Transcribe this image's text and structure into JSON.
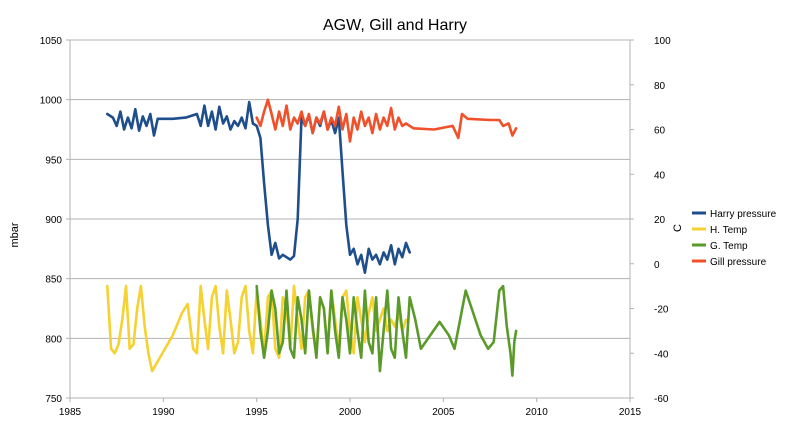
{
  "chart_data": {
    "type": "line",
    "title": "AGW, Gill and Harry",
    "ylabel": "mbar",
    "y2label": "C",
    "xlim": [
      1985,
      2015
    ],
    "ylim": [
      750,
      1050
    ],
    "y2lim": [
      -60,
      100
    ],
    "xticks": [
      1985,
      1990,
      1995,
      2000,
      2005,
      2010,
      2015
    ],
    "yticks": [
      750,
      800,
      850,
      900,
      950,
      1000,
      1050
    ],
    "y2ticks": [
      -60,
      -40,
      -20,
      0,
      20,
      40,
      60,
      80,
      100
    ],
    "grid": "horizontal",
    "legend_position": "right",
    "series": [
      {
        "name": "Harry pressure",
        "axis": "left",
        "color": "#1f4e8c",
        "points": [
          [
            1987.0,
            988
          ],
          [
            1987.3,
            985
          ],
          [
            1987.5,
            978
          ],
          [
            1987.7,
            990
          ],
          [
            1987.9,
            975
          ],
          [
            1988.1,
            985
          ],
          [
            1988.3,
            976
          ],
          [
            1988.5,
            992
          ],
          [
            1988.7,
            974
          ],
          [
            1988.9,
            986
          ],
          [
            1989.1,
            978
          ],
          [
            1989.3,
            988
          ],
          [
            1989.5,
            970
          ],
          [
            1989.7,
            984
          ],
          [
            1990.5,
            984
          ],
          [
            1991.2,
            985
          ],
          [
            1991.8,
            988
          ],
          [
            1992.0,
            978
          ],
          [
            1992.2,
            995
          ],
          [
            1992.4,
            978
          ],
          [
            1992.6,
            990
          ],
          [
            1992.8,
            975
          ],
          [
            1993.0,
            994
          ],
          [
            1993.2,
            980
          ],
          [
            1993.4,
            986
          ],
          [
            1993.6,
            975
          ],
          [
            1993.8,
            982
          ],
          [
            1994.0,
            978
          ],
          [
            1994.2,
            985
          ],
          [
            1994.4,
            976
          ],
          [
            1994.6,
            998
          ],
          [
            1994.8,
            980
          ],
          [
            1995.0,
            978
          ],
          [
            1995.2,
            968
          ],
          [
            1995.4,
            930
          ],
          [
            1995.6,
            895
          ],
          [
            1995.8,
            870
          ],
          [
            1996.0,
            880
          ],
          [
            1996.2,
            867
          ],
          [
            1996.4,
            870
          ],
          [
            1996.6,
            868
          ],
          [
            1996.8,
            866
          ],
          [
            1997.0,
            869
          ],
          [
            1997.2,
            900
          ],
          [
            1997.4,
            985
          ],
          [
            1997.6,
            978
          ],
          [
            1997.8,
            987
          ],
          [
            1998.0,
            972
          ],
          [
            1998.2,
            985
          ],
          [
            1998.4,
            978
          ],
          [
            1998.6,
            990
          ],
          [
            1998.8,
            975
          ],
          [
            1999.0,
            983
          ],
          [
            1999.2,
            972
          ],
          [
            1999.4,
            985
          ],
          [
            1999.6,
            940
          ],
          [
            1999.8,
            895
          ],
          [
            2000.0,
            870
          ],
          [
            2000.2,
            875
          ],
          [
            2000.4,
            862
          ],
          [
            2000.6,
            870
          ],
          [
            2000.8,
            855
          ],
          [
            2001.0,
            875
          ],
          [
            2001.2,
            866
          ],
          [
            2001.4,
            870
          ],
          [
            2001.6,
            862
          ],
          [
            2001.8,
            872
          ],
          [
            2002.0,
            866
          ],
          [
            2002.2,
            878
          ],
          [
            2002.4,
            862
          ],
          [
            2002.6,
            875
          ],
          [
            2002.8,
            868
          ],
          [
            2003.0,
            880
          ],
          [
            2003.2,
            872
          ]
        ]
      },
      {
        "name": "H. Temp",
        "axis": "right",
        "color": "#f5d131",
        "points": [
          [
            1987.0,
            -10
          ],
          [
            1987.2,
            -38
          ],
          [
            1987.4,
            -40
          ],
          [
            1987.6,
            -36
          ],
          [
            1987.8,
            -25
          ],
          [
            1988.0,
            -10
          ],
          [
            1988.2,
            -38
          ],
          [
            1988.4,
            -36
          ],
          [
            1988.6,
            -20
          ],
          [
            1988.8,
            -10
          ],
          [
            1989.0,
            -28
          ],
          [
            1989.2,
            -40
          ],
          [
            1989.4,
            -48
          ],
          [
            1990.5,
            -32
          ],
          [
            1991.0,
            -22
          ],
          [
            1991.3,
            -18
          ],
          [
            1991.6,
            -38
          ],
          [
            1991.8,
            -40
          ],
          [
            1992.0,
            -10
          ],
          [
            1992.2,
            -25
          ],
          [
            1992.4,
            -38
          ],
          [
            1992.6,
            -15
          ],
          [
            1992.8,
            -10
          ],
          [
            1993.0,
            -28
          ],
          [
            1993.2,
            -40
          ],
          [
            1993.4,
            -12
          ],
          [
            1993.6,
            -25
          ],
          [
            1993.8,
            -40
          ],
          [
            1994.0,
            -35
          ],
          [
            1994.2,
            -15
          ],
          [
            1994.4,
            -10
          ],
          [
            1994.6,
            -30
          ],
          [
            1994.8,
            -40
          ],
          [
            1995.0,
            -12
          ],
          [
            1995.2,
            -25
          ],
          [
            1995.4,
            -40
          ],
          [
            1995.6,
            -15
          ],
          [
            1995.8,
            -12
          ],
          [
            1996.0,
            -38
          ],
          [
            1996.2,
            -42
          ],
          [
            1996.4,
            -15
          ],
          [
            1996.6,
            -20
          ],
          [
            1996.8,
            -38
          ],
          [
            1997.0,
            -10
          ],
          [
            1997.2,
            -25
          ],
          [
            1997.4,
            -38
          ],
          [
            1997.6,
            -15
          ],
          [
            1997.8,
            -12
          ],
          [
            1998.0,
            -30
          ],
          [
            1998.2,
            -40
          ],
          [
            1998.4,
            -15
          ],
          [
            1998.6,
            -20
          ],
          [
            1998.8,
            -38
          ],
          [
            1999.0,
            -12
          ],
          [
            1999.2,
            -25
          ],
          [
            1999.4,
            -38
          ],
          [
            1999.6,
            -15
          ],
          [
            1999.8,
            -12
          ],
          [
            2000.0,
            -30
          ],
          [
            2000.2,
            -40
          ],
          [
            2000.4,
            -15
          ],
          [
            2000.6,
            -25
          ],
          [
            2000.8,
            -35
          ],
          [
            2001.0,
            -22
          ],
          [
            2001.2,
            -15
          ],
          [
            2001.4,
            -30
          ],
          [
            2001.6,
            -25
          ],
          [
            2001.8,
            -20
          ],
          [
            2002.0,
            -30
          ],
          [
            2002.2,
            -25
          ],
          [
            2002.4,
            -28
          ],
          [
            2002.6,
            -22
          ],
          [
            2002.8,
            -30
          ],
          [
            2003.0,
            -25
          ]
        ]
      },
      {
        "name": "G. Temp",
        "axis": "right",
        "color": "#5a9a2a",
        "points": [
          [
            1995.0,
            -10
          ],
          [
            1995.2,
            -30
          ],
          [
            1995.4,
            -42
          ],
          [
            1995.6,
            -30
          ],
          [
            1995.8,
            -12
          ],
          [
            1996.0,
            -20
          ],
          [
            1996.2,
            -40
          ],
          [
            1996.4,
            -35
          ],
          [
            1996.6,
            -12
          ],
          [
            1996.8,
            -38
          ],
          [
            1997.0,
            -42
          ],
          [
            1997.2,
            -15
          ],
          [
            1997.4,
            -25
          ],
          [
            1997.6,
            -40
          ],
          [
            1997.8,
            -12
          ],
          [
            1998.0,
            -28
          ],
          [
            1998.2,
            -42
          ],
          [
            1998.4,
            -15
          ],
          [
            1998.6,
            -20
          ],
          [
            1998.8,
            -40
          ],
          [
            1999.0,
            -12
          ],
          [
            1999.2,
            -30
          ],
          [
            1999.4,
            -42
          ],
          [
            1999.6,
            -15
          ],
          [
            1999.8,
            -25
          ],
          [
            2000.0,
            -40
          ],
          [
            2000.2,
            -15
          ],
          [
            2000.4,
            -30
          ],
          [
            2000.6,
            -42
          ],
          [
            2000.8,
            -12
          ],
          [
            2001.0,
            -35
          ],
          [
            2001.2,
            -40
          ],
          [
            2001.4,
            -15
          ],
          [
            2001.6,
            -48
          ],
          [
            2001.8,
            -30
          ],
          [
            2002.0,
            -12
          ],
          [
            2002.2,
            -38
          ],
          [
            2002.4,
            -42
          ],
          [
            2002.6,
            -15
          ],
          [
            2002.8,
            -30
          ],
          [
            2003.0,
            -42
          ],
          [
            2003.2,
            -15
          ],
          [
            2003.5,
            -25
          ],
          [
            2003.8,
            -38
          ],
          [
            2004.8,
            -26
          ],
          [
            2005.3,
            -32
          ],
          [
            2005.6,
            -38
          ],
          [
            2005.9,
            -25
          ],
          [
            2006.2,
            -12
          ],
          [
            2006.6,
            -22
          ],
          [
            2007.0,
            -32
          ],
          [
            2007.4,
            -38
          ],
          [
            2007.7,
            -35
          ],
          [
            2008.0,
            -12
          ],
          [
            2008.2,
            -10
          ],
          [
            2008.4,
            -28
          ],
          [
            2008.6,
            -40
          ],
          [
            2008.7,
            -50
          ],
          [
            2008.8,
            -35
          ],
          [
            2008.9,
            -30
          ]
        ]
      },
      {
        "name": "Gill pressure",
        "axis": "left",
        "color": "#f0502a",
        "points": [
          [
            1995.0,
            985
          ],
          [
            1995.2,
            978
          ],
          [
            1995.4,
            990
          ],
          [
            1995.6,
            1000
          ],
          [
            1995.8,
            988
          ],
          [
            1996.0,
            975
          ],
          [
            1996.2,
            990
          ],
          [
            1996.4,
            978
          ],
          [
            1996.6,
            995
          ],
          [
            1996.8,
            975
          ],
          [
            1997.0,
            985
          ],
          [
            1997.2,
            980
          ],
          [
            1997.4,
            990
          ],
          [
            1997.6,
            978
          ],
          [
            1997.8,
            988
          ],
          [
            1998.0,
            972
          ],
          [
            1998.2,
            985
          ],
          [
            1998.4,
            980
          ],
          [
            1998.6,
            990
          ],
          [
            1998.8,
            975
          ],
          [
            1999.0,
            985
          ],
          [
            1999.2,
            978
          ],
          [
            1999.4,
            994
          ],
          [
            1999.6,
            975
          ],
          [
            1999.8,
            988
          ],
          [
            2000.0,
            965
          ],
          [
            2000.2,
            985
          ],
          [
            2000.4,
            975
          ],
          [
            2000.6,
            990
          ],
          [
            2000.8,
            978
          ],
          [
            2001.0,
            985
          ],
          [
            2001.2,
            972
          ],
          [
            2001.4,
            988
          ],
          [
            2001.6,
            975
          ],
          [
            2001.8,
            985
          ],
          [
            2002.0,
            978
          ],
          [
            2002.2,
            993
          ],
          [
            2002.4,
            975
          ],
          [
            2002.6,
            985
          ],
          [
            2002.8,
            978
          ],
          [
            2003.0,
            980
          ],
          [
            2003.4,
            976
          ],
          [
            2004.5,
            975
          ],
          [
            2005.5,
            978
          ],
          [
            2005.8,
            968
          ],
          [
            2006.0,
            988
          ],
          [
            2006.3,
            984
          ],
          [
            2007.5,
            983
          ],
          [
            2008.0,
            983
          ],
          [
            2008.2,
            978
          ],
          [
            2008.5,
            980
          ],
          [
            2008.7,
            970
          ],
          [
            2008.9,
            976
          ]
        ]
      }
    ]
  }
}
